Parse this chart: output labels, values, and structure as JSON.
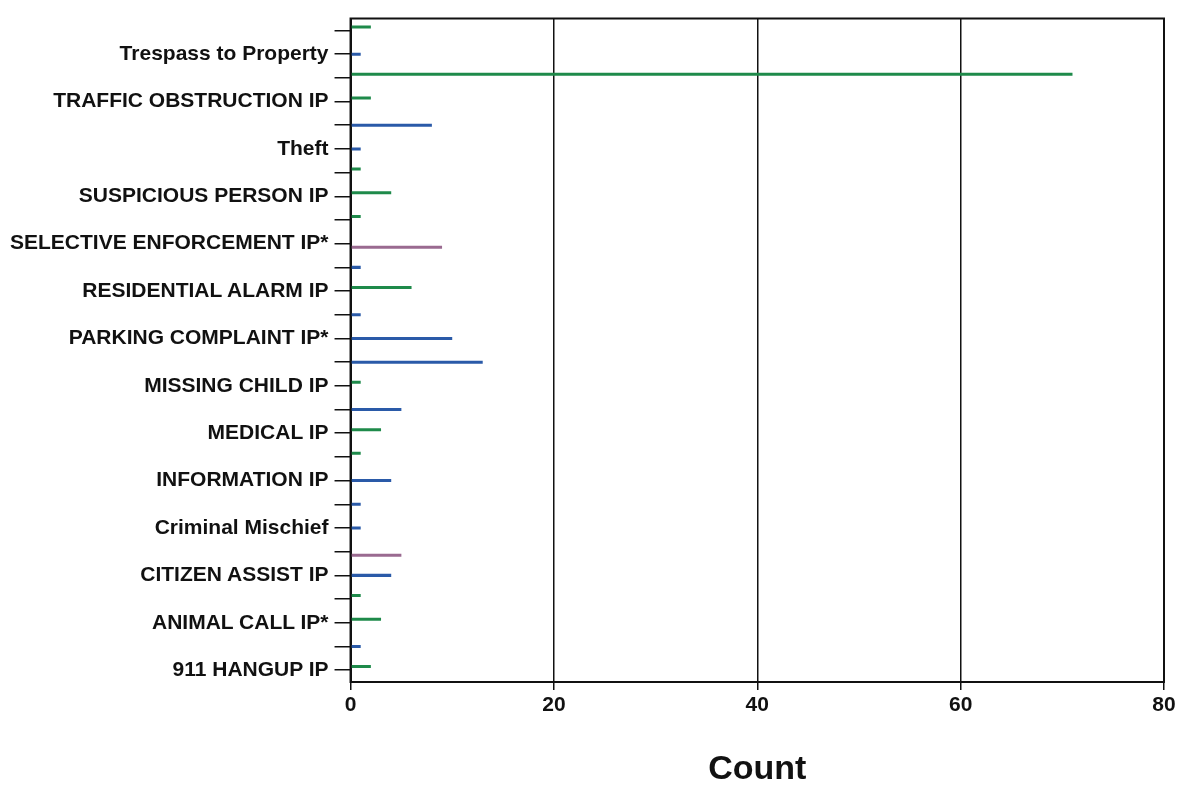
{
  "chart_data": {
    "type": "bar",
    "orientation": "horizontal",
    "xlabel": "Count",
    "categories": [
      null,
      "Trespass to Property",
      null,
      "TRAFFIC OBSTRUCTION IP",
      null,
      "Theft",
      null,
      "SUSPICIOUS PERSON IP",
      null,
      "SELECTIVE ENFORCEMENT IP*",
      null,
      "RESIDENTIAL ALARM IP",
      null,
      "PARKING COMPLAINT IP*",
      null,
      "MISSING CHILD IP",
      null,
      "MEDICAL IP",
      null,
      "INFORMATION IP",
      null,
      "Criminal Mischief",
      null,
      "CITIZEN ASSIST IP",
      null,
      "ANIMAL CALL IP*",
      null,
      "911 HANGUP IP"
    ],
    "series": [
      {
        "color": "#1e8a4a",
        "values": [
          2,
          null,
          71,
          2,
          null,
          null,
          1,
          4,
          1,
          null,
          null,
          6,
          null,
          null,
          null,
          1,
          null,
          3,
          1,
          null,
          null,
          null,
          null,
          null,
          1,
          3,
          null,
          2
        ]
      },
      {
        "color": "#2a5aa8",
        "values": [
          null,
          1,
          null,
          null,
          8,
          1,
          null,
          null,
          null,
          null,
          1,
          null,
          1,
          10,
          13,
          null,
          5,
          null,
          null,
          4,
          1,
          1,
          null,
          4,
          null,
          null,
          1,
          null
        ]
      },
      {
        "color": "#9a6a90",
        "values": [
          null,
          null,
          null,
          null,
          null,
          null,
          null,
          null,
          null,
          9,
          null,
          null,
          null,
          null,
          null,
          null,
          null,
          null,
          null,
          null,
          null,
          null,
          5,
          null,
          null,
          null,
          null,
          null
        ]
      }
    ],
    "xlim": [
      0,
      80
    ],
    "xticks": [
      0,
      20,
      40,
      60,
      80
    ],
    "grid": "x"
  }
}
